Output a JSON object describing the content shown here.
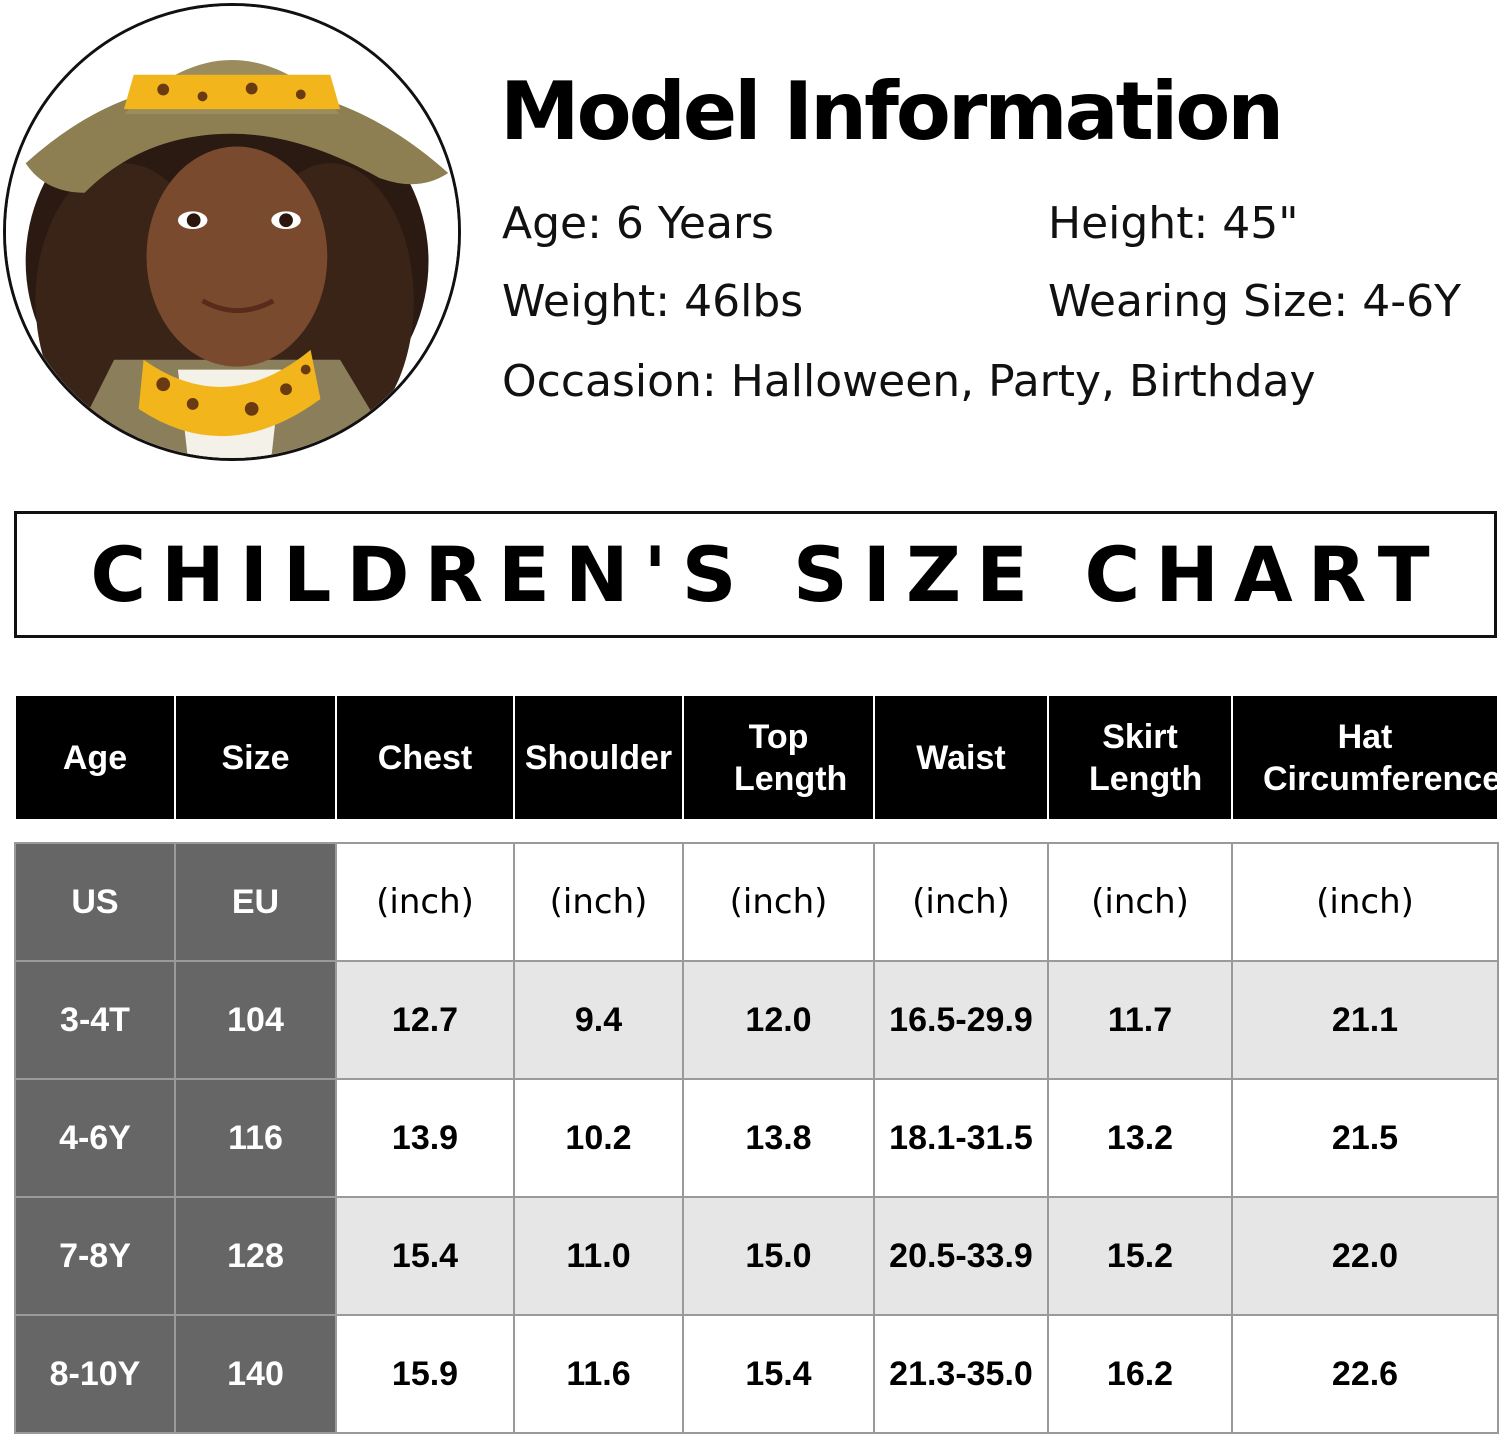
{
  "model": {
    "title": "Model Information",
    "age": "Age: 6 Years",
    "height": "Height: 45\"",
    "weight": "Weight: 46lbs",
    "wearing_size": "Wearing Size: 4-6Y",
    "occasion": "Occasion: Halloween, Party, Birthday"
  },
  "banner": {
    "title": "CHILDREN'S SIZE CHART"
  },
  "table": {
    "headers": [
      "Age",
      "Size",
      "Chest",
      "Shoulder",
      "Top Length",
      "Waist",
      "Skirt Length",
      "Hat Circumference"
    ],
    "units": [
      "US",
      "EU",
      "(inch)",
      "(inch)",
      "(inch)",
      "(inch)",
      "(inch)",
      "(inch)"
    ],
    "rows": [
      [
        "3-4T",
        "104",
        "12.7",
        "9.4",
        "12.0",
        "16.5-29.9",
        "11.7",
        "21.1"
      ],
      [
        "4-6Y",
        "116",
        "13.9",
        "10.2",
        "13.8",
        "18.1-31.5",
        "13.2",
        "21.5"
      ],
      [
        "7-8Y",
        "128",
        "15.4",
        "11.0",
        "15.0",
        "20.5-33.9",
        "15.2",
        "22.0"
      ],
      [
        "8-10Y",
        "140",
        "15.9",
        "11.6",
        "15.4",
        "21.3-35.0",
        "16.2",
        "22.6"
      ]
    ]
  },
  "colors": {
    "header_bg": "#000000",
    "label_col_bg": "#666666",
    "row_shade": "#e6e6e6"
  }
}
